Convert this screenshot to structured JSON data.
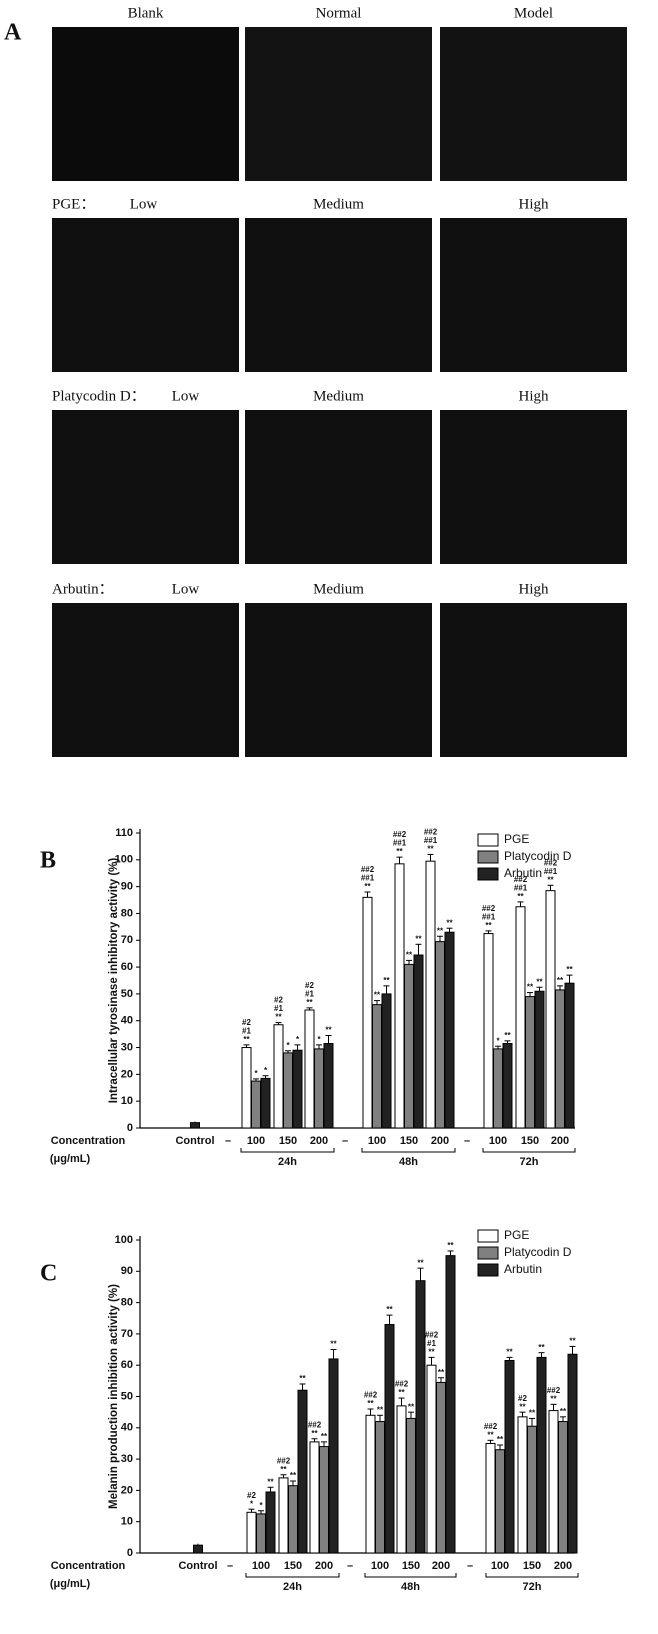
{
  "panel_a": {
    "label": "A",
    "rows": [
      {
        "columns": [
          "Blank",
          "Normal",
          "Model"
        ]
      },
      {
        "prefix": "PGE：",
        "columns": [
          "Low",
          "Medium",
          "High"
        ]
      },
      {
        "prefix": "Platycodin D：",
        "columns": [
          "Low",
          "Medium",
          "High"
        ]
      },
      {
        "prefix": "Arbutin：",
        "columns": [
          "Low",
          "Medium",
          "High"
        ]
      }
    ]
  },
  "chart_data": [
    {
      "type": "bar",
      "panel": "B",
      "ylabel": "Intracellular tyrosinase inhibitory activity (%)",
      "xlabel": "Concentration",
      "xlabel_unit": "(μg/mL)",
      "categories": [
        "Control",
        "100",
        "150",
        "200",
        "100",
        "150",
        "200",
        "100",
        "150",
        "200"
      ],
      "separators": [
        "–",
        "–",
        "–"
      ],
      "groups": [
        "24h",
        "48h",
        "72h"
      ],
      "control_value": 2,
      "control_error": 0.4,
      "ylim": [
        0,
        110
      ],
      "yticks": [
        0,
        10,
        20,
        30,
        40,
        50,
        60,
        70,
        80,
        90,
        100,
        110
      ],
      "series": [
        {
          "name": "PGE",
          "color": "#ffffff",
          "values": [
            null,
            30,
            38.5,
            44,
            86,
            98.5,
            99.5,
            72.5,
            82.5,
            88.5
          ],
          "errors": [
            null,
            1,
            0.8,
            0.8,
            2,
            2.5,
            2.5,
            1,
            1.8,
            2
          ],
          "annotations": [
            null,
            [
              "#2",
              "#1",
              "**"
            ],
            [
              "#2",
              "#1",
              "**"
            ],
            [
              "#2",
              "#1",
              "**"
            ],
            [
              "##2",
              "##1",
              "**"
            ],
            [
              "##2",
              "##1",
              "**"
            ],
            [
              "##2",
              "##1",
              "**"
            ],
            [
              "##2",
              "##1",
              "**"
            ],
            [
              "##2",
              "##1",
              "**"
            ],
            [
              "##2",
              "##1",
              "**"
            ]
          ]
        },
        {
          "name": "Platycodin D",
          "color": "#808080",
          "values": [
            null,
            17.5,
            28,
            29.5,
            46,
            61,
            69.5,
            29.5,
            49,
            51.5
          ],
          "errors": [
            null,
            0.8,
            0.8,
            1.5,
            1.5,
            1.5,
            2,
            1,
            1.5,
            1.5
          ],
          "annotations": [
            null,
            [
              "*"
            ],
            [
              "*"
            ],
            [
              "*"
            ],
            [
              "**"
            ],
            [
              "**"
            ],
            [
              "**"
            ],
            [
              "*"
            ],
            [
              "**"
            ],
            [
              "**"
            ]
          ]
        },
        {
          "name": "Arbutin",
          "color": "#222222",
          "values": [
            null,
            18.5,
            29,
            31.5,
            50,
            64.5,
            73,
            31.5,
            51,
            54
          ],
          "errors": [
            null,
            1,
            2,
            3,
            3,
            4,
            1.5,
            1,
            1.5,
            3
          ],
          "annotations": [
            null,
            [
              "*"
            ],
            [
              "*"
            ],
            [
              "**"
            ],
            [
              "**"
            ],
            [
              "**"
            ],
            [
              "**"
            ],
            [
              "**"
            ],
            [
              "**"
            ],
            [
              "**"
            ]
          ]
        }
      ]
    },
    {
      "type": "bar",
      "panel": "C",
      "ylabel": "Melanin production inhibition activity (%)",
      "xlabel": "Concentration",
      "xlabel_unit": "(μg/mL)",
      "categories": [
        "Control",
        "100",
        "150",
        "200",
        "100",
        "150",
        "200",
        "100",
        "150",
        "200"
      ],
      "separators": [
        "–",
        "–",
        "–"
      ],
      "groups": [
        "24h",
        "48h",
        "72h"
      ],
      "control_value": 2.5,
      "control_error": 0.5,
      "ylim": [
        0,
        100
      ],
      "yticks": [
        0,
        10,
        20,
        30,
        40,
        50,
        60,
        70,
        80,
        90,
        100
      ],
      "series": [
        {
          "name": "PGE",
          "color": "#ffffff",
          "values": [
            null,
            13,
            24,
            35.5,
            44,
            47,
            60,
            35,
            43.5,
            45.5
          ],
          "errors": [
            null,
            1,
            1,
            1,
            2,
            2.5,
            2.5,
            1,
            1.5,
            2
          ],
          "annotations": [
            null,
            [
              "#2",
              "*"
            ],
            [
              "##2",
              "**"
            ],
            [
              "##2",
              "**"
            ],
            [
              "##2",
              "**"
            ],
            [
              "##2",
              "**"
            ],
            [
              "##2",
              "#1",
              "**"
            ],
            [
              "##2",
              "**"
            ],
            [
              "#2",
              "**"
            ],
            [
              "##2",
              "**"
            ]
          ]
        },
        {
          "name": "Platycodin D",
          "color": "#808080",
          "values": [
            null,
            12.5,
            21.5,
            34,
            42,
            43,
            54.5,
            33,
            40.5,
            42
          ],
          "errors": [
            null,
            1,
            1.5,
            1.5,
            2,
            2,
            1.5,
            1.5,
            2.5,
            1.5
          ],
          "annotations": [
            null,
            [
              "*"
            ],
            [
              "**"
            ],
            [
              "**"
            ],
            [
              "**"
            ],
            [
              "**"
            ],
            [
              "**"
            ],
            [
              "**"
            ],
            [
              "**"
            ],
            [
              "**"
            ]
          ]
        },
        {
          "name": "Arbutin",
          "color": "#222222",
          "values": [
            null,
            19.5,
            52,
            62,
            73,
            87,
            95,
            61.5,
            62.5,
            63.5
          ],
          "errors": [
            null,
            1.5,
            2,
            3,
            3,
            4,
            1.5,
            1,
            1.5,
            2.5
          ],
          "annotations": [
            null,
            [
              "**"
            ],
            [
              "**"
            ],
            [
              "**"
            ],
            [
              "**"
            ],
            [
              "**"
            ],
            [
              "**"
            ],
            [
              "**"
            ],
            [
              "**"
            ],
            [
              "**"
            ]
          ]
        }
      ]
    }
  ]
}
